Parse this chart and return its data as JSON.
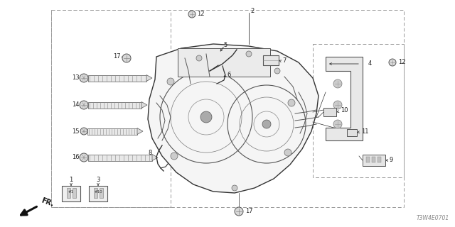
{
  "bg_color": "#ffffff",
  "diagram_code": "T3W4E0701",
  "line_color": "#333333",
  "label_color": "#222222",
  "dash_color": "#999999",
  "figsize": [
    6.4,
    3.2
  ],
  "dpi": 100
}
